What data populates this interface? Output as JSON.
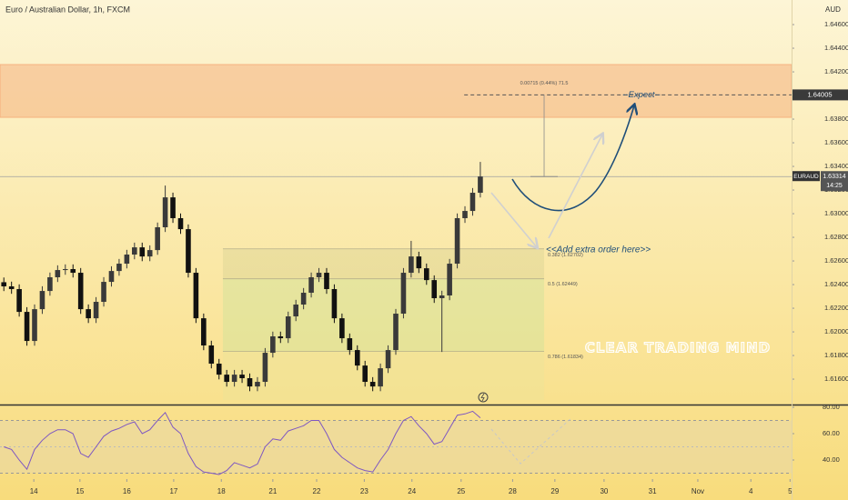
{
  "chart_data": {
    "type": "candlestick",
    "title": "Euro / Australian Dollar, 1h, FXCM",
    "y_axis_label": "AUD",
    "symbol": "EURAUD",
    "last_price": 1.63314,
    "countdown": "14:25",
    "target": 1.64005,
    "xlim": [
      0,
      103
    ],
    "xticks": [
      {
        "value": 4.4,
        "label": "14"
      },
      {
        "value": 10.4,
        "label": "15"
      },
      {
        "value": 16.5,
        "label": "16"
      },
      {
        "value": 22.6,
        "label": "17"
      },
      {
        "value": 28.8,
        "label": "18"
      },
      {
        "value": 35.5,
        "label": "21"
      },
      {
        "value": 41.2,
        "label": "22"
      },
      {
        "value": 47.4,
        "label": "23"
      },
      {
        "value": 53.6,
        "label": "24"
      },
      {
        "value": 60.0,
        "label": "25"
      },
      {
        "value": 66.7,
        "label": "28"
      },
      {
        "value": 72.2,
        "label": "29"
      },
      {
        "value": 78.6,
        "label": "30"
      },
      {
        "value": 84.9,
        "label": "31"
      },
      {
        "value": 90.8,
        "label": "Nov"
      },
      {
        "value": 97.7,
        "label": "4"
      },
      {
        "value": 102.8,
        "label": "5"
      }
    ],
    "ylim": [
      1.61385,
      1.64808
    ],
    "yticks": [
      {
        "value": 1.616,
        "label": "1.61600"
      },
      {
        "value": 1.618,
        "label": "1.61800"
      },
      {
        "value": 1.62,
        "label": "1.62000"
      },
      {
        "value": 1.622,
        "label": "1.62200"
      },
      {
        "value": 1.624,
        "label": "1.62400"
      },
      {
        "value": 1.626,
        "label": "1.62600"
      },
      {
        "value": 1.628,
        "label": "1.62800"
      },
      {
        "value": 1.63,
        "label": "1.63000"
      },
      {
        "value": 1.632,
        "label": "1.63200"
      },
      {
        "value": 1.634,
        "label": "1.63400"
      },
      {
        "value": 1.636,
        "label": "1.63600"
      },
      {
        "value": 1.638,
        "label": "1.63800"
      },
      {
        "value": 1.64,
        "label": "1.64000"
      },
      {
        "value": 1.642,
        "label": "1.64200"
      },
      {
        "value": 1.644,
        "label": "1.64400"
      },
      {
        "value": 1.646,
        "label": "1.64600"
      }
    ],
    "up_color": "#3a3a3a",
    "down_color": "#111111",
    "x": [
      0.5,
      1.5,
      2.5,
      3.5,
      4.5,
      5.5,
      6.5,
      7.5,
      8.5,
      9.5,
      10.5,
      11.5,
      12.5,
      13.5,
      14.5,
      15.5,
      16.5,
      17.5,
      18.5,
      19.5,
      20.5,
      21.5,
      22.5,
      23.5,
      24.5,
      25.5,
      26.5,
      27.5,
      28.5,
      29.5,
      30.5,
      31.5,
      32.5,
      33.5,
      34.5,
      35.5,
      36.5,
      37.5,
      38.5,
      39.5,
      40.5,
      41.5,
      42.5,
      43.5,
      44.5,
      45.5,
      46.5,
      47.5,
      48.5,
      49.5,
      50.5,
      51.5,
      52.5,
      53.5,
      54.5,
      55.5,
      56.5,
      57.5,
      58.5,
      59.5,
      60.5,
      61.5,
      62.5
    ],
    "open": [
      1.6242,
      1.62385,
      1.62362,
      1.62169,
      1.61923,
      1.62192,
      1.62346,
      1.62462,
      1.62523,
      1.62531,
      1.625,
      1.62192,
      1.62115,
      1.62254,
      1.62423,
      1.62515,
      1.62577,
      1.62654,
      1.62715,
      1.62638,
      1.62692,
      1.62885,
      1.63138,
      1.62962,
      1.62869,
      1.625,
      1.62115,
      1.61885,
      1.61731,
      1.61638,
      1.61577,
      1.61638,
      1.61608,
      1.61538,
      1.61577,
      1.61823,
      1.61962,
      1.61946,
      1.62131,
      1.62231,
      1.62331,
      1.62462,
      1.625,
      1.62362,
      1.62115,
      1.61946,
      1.61846,
      1.61715,
      1.61577,
      1.61538,
      1.61692,
      1.61846,
      1.62154,
      1.625,
      1.62638,
      1.62538,
      1.62438,
      1.62285,
      1.62308,
      1.62577,
      1.62962,
      1.63023,
      1.63177
    ],
    "high": [
      1.6246,
      1.62425,
      1.62402,
      1.62209,
      1.62232,
      1.62386,
      1.62502,
      1.62563,
      1.62571,
      1.62571,
      1.6254,
      1.62232,
      1.62294,
      1.62463,
      1.62555,
      1.62617,
      1.62694,
      1.62755,
      1.62755,
      1.62732,
      1.62925,
      1.63238,
      1.63178,
      1.63002,
      1.62909,
      1.6254,
      1.62155,
      1.61925,
      1.61771,
      1.61678,
      1.61678,
      1.61678,
      1.61648,
      1.61617,
      1.61863,
      1.62002,
      1.62002,
      1.62171,
      1.62271,
      1.62371,
      1.62502,
      1.6254,
      1.6254,
      1.62402,
      1.62155,
      1.61986,
      1.61886,
      1.61755,
      1.61617,
      1.61732,
      1.61886,
      1.62194,
      1.6254,
      1.6277,
      1.62678,
      1.62578,
      1.62478,
      1.62348,
      1.62617,
      1.63002,
      1.63063,
      1.63217,
      1.63438
    ],
    "low": [
      1.62345,
      1.62322,
      1.62129,
      1.61883,
      1.61883,
      1.62152,
      1.62306,
      1.62422,
      1.62483,
      1.6246,
      1.62152,
      1.62075,
      1.62075,
      1.62214,
      1.62383,
      1.62475,
      1.62537,
      1.62614,
      1.62598,
      1.62598,
      1.62652,
      1.62845,
      1.62922,
      1.62829,
      1.6246,
      1.62075,
      1.61845,
      1.61691,
      1.61598,
      1.61537,
      1.61537,
      1.61568,
      1.61498,
      1.61498,
      1.61537,
      1.61783,
      1.61906,
      1.61906,
      1.62091,
      1.62191,
      1.62291,
      1.62422,
      1.62322,
      1.62075,
      1.61906,
      1.61806,
      1.61675,
      1.61537,
      1.61498,
      1.61498,
      1.61652,
      1.61806,
      1.62114,
      1.6246,
      1.62498,
      1.62398,
      1.62245,
      1.6183,
      1.62268,
      1.62537,
      1.62922,
      1.62983,
      1.63137
    ],
    "close": [
      1.62385,
      1.62362,
      1.62169,
      1.61923,
      1.62192,
      1.62346,
      1.62462,
      1.62523,
      1.62531,
      1.625,
      1.62192,
      1.62115,
      1.62254,
      1.62423,
      1.62515,
      1.62577,
      1.62654,
      1.62715,
      1.62638,
      1.62692,
      1.62885,
      1.63138,
      1.62962,
      1.62869,
      1.625,
      1.62115,
      1.61885,
      1.61731,
      1.61638,
      1.61577,
      1.61638,
      1.61608,
      1.61538,
      1.61577,
      1.61823,
      1.61962,
      1.61946,
      1.62131,
      1.62231,
      1.62331,
      1.62462,
      1.625,
      1.62362,
      1.62115,
      1.61946,
      1.61846,
      1.61715,
      1.61577,
      1.61538,
      1.61692,
      1.61846,
      1.62154,
      1.625,
      1.62638,
      1.62538,
      1.62438,
      1.62285,
      1.62308,
      1.62577,
      1.62962,
      1.63023,
      1.63177,
      1.63314
    ],
    "zone": {
      "from": 1.63815,
      "to": 1.64262,
      "color": "#f5a36e"
    },
    "fib_xlim": [
      29,
      70.8
    ],
    "fib_levels": [
      {
        "value": 1.62702,
        "label": "0.382 (1.62702)"
      },
      {
        "value": 1.62449,
        "label": "0.5 (1.62449)"
      },
      {
        "value": 1.61834,
        "label": "0.786 (1.61834)"
      }
    ],
    "measure": "0.00715 (0.44%) 71.5",
    "annotations": {
      "expect": "--Expect--",
      "add_order": "<<Add extra order here>>"
    },
    "watermark": "CLEAR TRADING MIND",
    "rsi": {
      "color": "#7e57c2",
      "ylim": [
        26.9,
        80.7
      ],
      "yticks": [
        {
          "value": 40,
          "label": "40.00"
        },
        {
          "value": 60,
          "label": "60.00"
        },
        {
          "value": 80,
          "label": "80.00"
        }
      ],
      "band": [
        30,
        70
      ],
      "midline": 50,
      "values": [
        50,
        48,
        40,
        33,
        48,
        55,
        60,
        63,
        63,
        60,
        45,
        42,
        50,
        58,
        62,
        64,
        67,
        69,
        60,
        63,
        70,
        76,
        65,
        60,
        45,
        35,
        31,
        30,
        29,
        32,
        38,
        36,
        34,
        37,
        50,
        56,
        55,
        62,
        64,
        66,
        70,
        70,
        60,
        48,
        42,
        38,
        34,
        32,
        31,
        40,
        48,
        60,
        70,
        73,
        66,
        60,
        52,
        54,
        64,
        74,
        75,
        77,
        72
      ]
    }
  }
}
